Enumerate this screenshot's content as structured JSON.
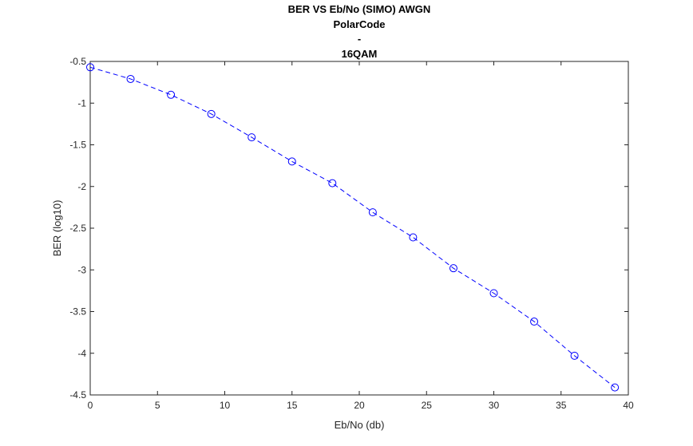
{
  "chart_data": {
    "type": "line",
    "title_lines": [
      "BER VS Eb/No (SIMO) AWGN",
      "PolarCode",
      "-",
      "16QAM"
    ],
    "xlabel": "Eb/No (db)",
    "ylabel": "BER (log10)",
    "xlim": [
      0,
      40
    ],
    "ylim": [
      -4.5,
      -0.5
    ],
    "xticks": [
      0,
      5,
      10,
      15,
      20,
      25,
      30,
      35,
      40
    ],
    "yticks": [
      -0.5,
      -1,
      -1.5,
      -2,
      -2.5,
      -3,
      -3.5,
      -4,
      -4.5
    ],
    "xtick_labels": [
      "0",
      "5",
      "10",
      "15",
      "20",
      "25",
      "30",
      "35",
      "40"
    ],
    "ytick_labels": [
      "-0.5",
      "-1",
      "-1.5",
      "-2",
      "-2.5",
      "-3",
      "-3.5",
      "-4",
      "-4.5"
    ],
    "grid": false,
    "box": true,
    "series": [
      {
        "color": "#0000ff",
        "line_style": "dashed",
        "marker": "circle",
        "x": [
          0,
          3,
          6,
          9,
          12,
          15,
          18,
          21,
          24,
          27,
          30,
          33,
          36,
          39
        ],
        "y": [
          -0.57,
          -0.71,
          -0.9,
          -1.13,
          -1.41,
          -1.7,
          -1.96,
          -2.31,
          -2.61,
          -2.98,
          -3.28,
          -3.62,
          -4.03,
          -4.41
        ]
      }
    ]
  }
}
